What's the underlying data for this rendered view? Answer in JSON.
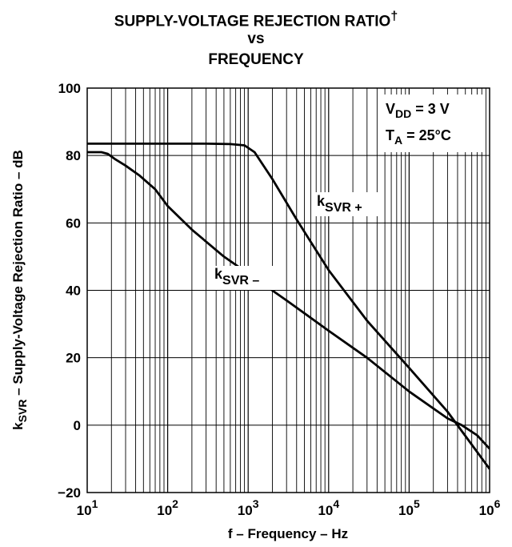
{
  "title": {
    "line1": "SUPPLY-VOLTAGE REJECTION RATIO",
    "line1_mark": "†",
    "line2": "vs",
    "line3": "FREQUENCY"
  },
  "chart_data": {
    "type": "line",
    "x_scale": "log",
    "xlim": [
      10,
      1000000
    ],
    "ylim": [
      -20,
      100
    ],
    "grid": true,
    "xlabel": "f – Frequency – Hz",
    "ylabel": {
      "symbol": "k",
      "subscript": "SVR",
      "rest": " – Supply-Voltage Rejection Ratio – dB"
    },
    "x_tick_labels": [
      {
        "base": "10",
        "exp": "1"
      },
      {
        "base": "10",
        "exp": "2"
      },
      {
        "base": "10",
        "exp": "3"
      },
      {
        "base": "10",
        "exp": "4"
      },
      {
        "base": "10",
        "exp": "5"
      },
      {
        "base": "10",
        "exp": "6"
      }
    ],
    "x_tick_values": [
      10,
      100,
      1000,
      10000,
      100000,
      1000000
    ],
    "y_ticks": [
      100,
      80,
      60,
      40,
      20,
      0,
      -20
    ],
    "y_tick_labels": [
      "100",
      "80",
      "60",
      "40",
      "20",
      "0",
      "−20"
    ],
    "conditions": [
      {
        "symbol": "V",
        "subscript": "DD",
        "rest": " = 3 V"
      },
      {
        "symbol": "T",
        "subscript": "A",
        "rest": " = 25°C"
      }
    ],
    "series": [
      {
        "name": "kSVR+",
        "label": {
          "symbol": "k",
          "subscript": "SVR +"
        },
        "x": [
          10,
          30,
          100,
          300,
          600,
          900,
          1200,
          2000,
          4000,
          10000,
          30000,
          100000,
          300000,
          1000000
        ],
        "y": [
          83.5,
          83.5,
          83.5,
          83.5,
          83.4,
          83,
          81,
          73,
          61,
          46,
          31,
          17,
          4,
          -13
        ]
      },
      {
        "name": "kSVR−",
        "label": {
          "symbol": "k",
          "subscript": "SVR –"
        },
        "x": [
          10,
          15,
          18,
          22,
          30,
          45,
          70,
          100,
          200,
          500,
          1000,
          3000,
          10000,
          30000,
          100000,
          300000,
          450000,
          700000,
          1000000
        ],
        "y": [
          81,
          81,
          80.5,
          79,
          77,
          74,
          70,
          65,
          58,
          50,
          45,
          37,
          28,
          20,
          10,
          2,
          0,
          -3,
          -7
        ]
      }
    ]
  }
}
